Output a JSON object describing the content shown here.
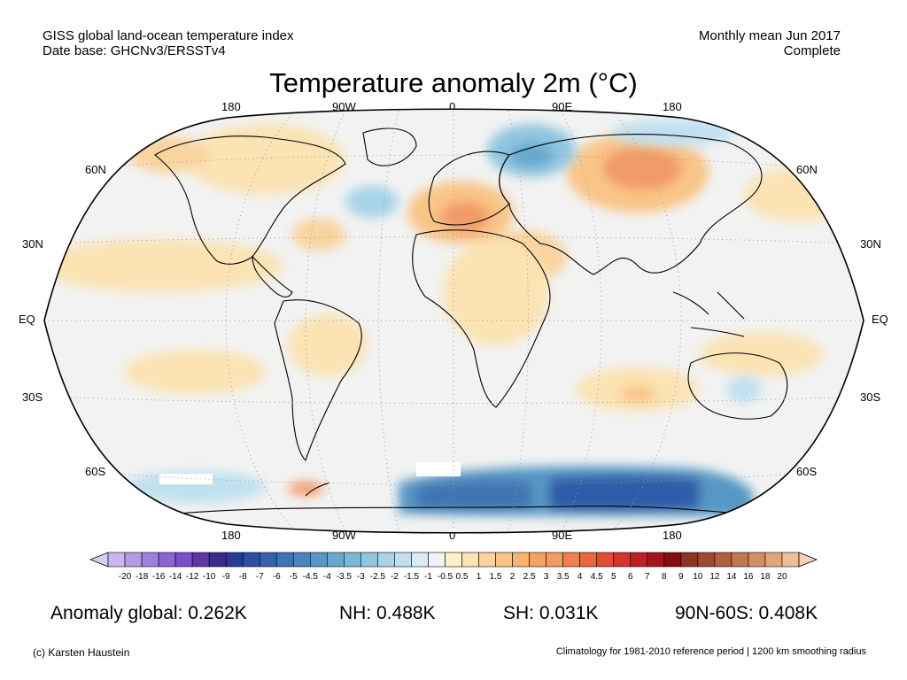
{
  "header": {
    "left_line1": "GISS global land-ocean temperature index",
    "left_line2": "Date base: GHCNv3/ERSSTv4",
    "right_line1": "Monthly mean Jun 2017",
    "right_line2": "Complete"
  },
  "title": "Temperature anomaly 2m (°C)",
  "map": {
    "projection": "Robinson",
    "lon_labels_top": [
      "180",
      "90W",
      "0",
      "90E",
      "180"
    ],
    "lon_labels_bottom": [
      "180",
      "90W",
      "0",
      "90E",
      "180"
    ],
    "lat_labels_left": [
      "60N",
      "30N",
      "EQ",
      "30S",
      "60S"
    ],
    "lat_labels_right": [
      "60N",
      "30N",
      "EQ",
      "30S",
      "60S"
    ],
    "colors": {
      "ocean_neutral": "#f2f2f2",
      "warm_light": "#fbe3b3",
      "warm_mid": "#f9c587",
      "warm_strong": "#f29b67",
      "cool_light": "#cfe6f7",
      "cool_mid": "#8fb8e0",
      "cool_strong": "#2f5ca8",
      "coast": "#000000"
    }
  },
  "colorbar": {
    "labels": [
      "-20",
      "-18",
      "-16",
      "-14",
      "-12",
      "-10",
      "-9",
      "-8",
      "-7",
      "-6",
      "-5",
      "-4.5",
      "-4",
      "-3.5",
      "-3",
      "-2.5",
      "-2",
      "-1.5",
      "-1",
      "-0.5",
      "0.5",
      "1",
      "1.5",
      "2",
      "2.5",
      "3",
      "3.5",
      "4",
      "4.5",
      "5",
      "6",
      "7",
      "8",
      "9",
      "10",
      "12",
      "14",
      "16",
      "18",
      "20"
    ],
    "colors": [
      "#c8b6ee",
      "#b39be6",
      "#9f80de",
      "#8b65d6",
      "#7a4fc9",
      "#5f36a8",
      "#3b2a8c",
      "#2a3a98",
      "#2c4ea6",
      "#3562ad",
      "#3f74b4",
      "#4a85bc",
      "#5797c5",
      "#67a8cf",
      "#7ab8d8",
      "#90c6e0",
      "#a8d3e8",
      "#c0e0f0",
      "#d8ecf7",
      "#f2f2f2",
      "#fdf0c8",
      "#fbe3b3",
      "#fad39e",
      "#f9c587",
      "#f7b473",
      "#f5a362",
      "#f29b67",
      "#ee8052",
      "#e8673f",
      "#e04c33",
      "#d3342c",
      "#bd1f24",
      "#a3151c",
      "#860b12",
      "#8b3624",
      "#9e4a30",
      "#b0603f",
      "#c2774f",
      "#d28f64",
      "#e0a77d",
      "#ecbf98"
    ],
    "under_color": "#d9cff5",
    "over_color": "#f5d2bc"
  },
  "stats": {
    "global": "Anomaly global: 0.262K",
    "nh": "NH: 0.488K",
    "sh": "SH: 0.031K",
    "arctic": "90N-60S: 0.408K"
  },
  "footer": {
    "left": "(c) Karsten Haustein",
    "right": "Climatology for 1981-2010 reference period | 1200 km smoothing radius"
  }
}
